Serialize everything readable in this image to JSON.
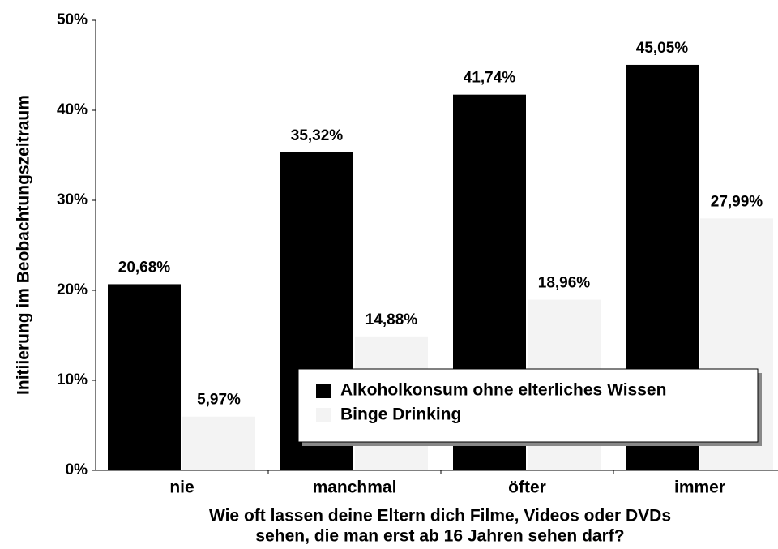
{
  "chart_data": {
    "type": "bar",
    "ylabel": "Initiierung im Beobachtungszeitraum",
    "xlabel": [
      "Wie oft lassen deine Eltern dich Filme, Videos oder DVDs",
      "sehen, die man erst ab 16 Jahren sehen darf?"
    ],
    "categories": [
      "nie",
      "manchmal",
      "öfter",
      "immer"
    ],
    "series": [
      {
        "name": "Alkoholkonsum ohne elterliches Wissen",
        "color": "#000000",
        "values": [
          20.68,
          35.32,
          41.74,
          45.05
        ],
        "value_labels": [
          "20,68%",
          "35,32%",
          "41,74%",
          "45,05%"
        ]
      },
      {
        "name": "Binge Drinking",
        "color": "#f3f3f3",
        "values": [
          5.97,
          14.88,
          18.96,
          27.99
        ],
        "value_labels": [
          "5,97%",
          "14,88%",
          "18,96%",
          "27,99%"
        ]
      }
    ],
    "ylim": [
      0,
      50
    ],
    "yticks": [
      {
        "value": 0,
        "label": "0%"
      },
      {
        "value": 10,
        "label": "10%"
      },
      {
        "value": 20,
        "label": "20%"
      },
      {
        "value": 30,
        "label": "30%"
      },
      {
        "value": 40,
        "label": "40%"
      },
      {
        "value": 50,
        "label": "50%"
      }
    ]
  }
}
